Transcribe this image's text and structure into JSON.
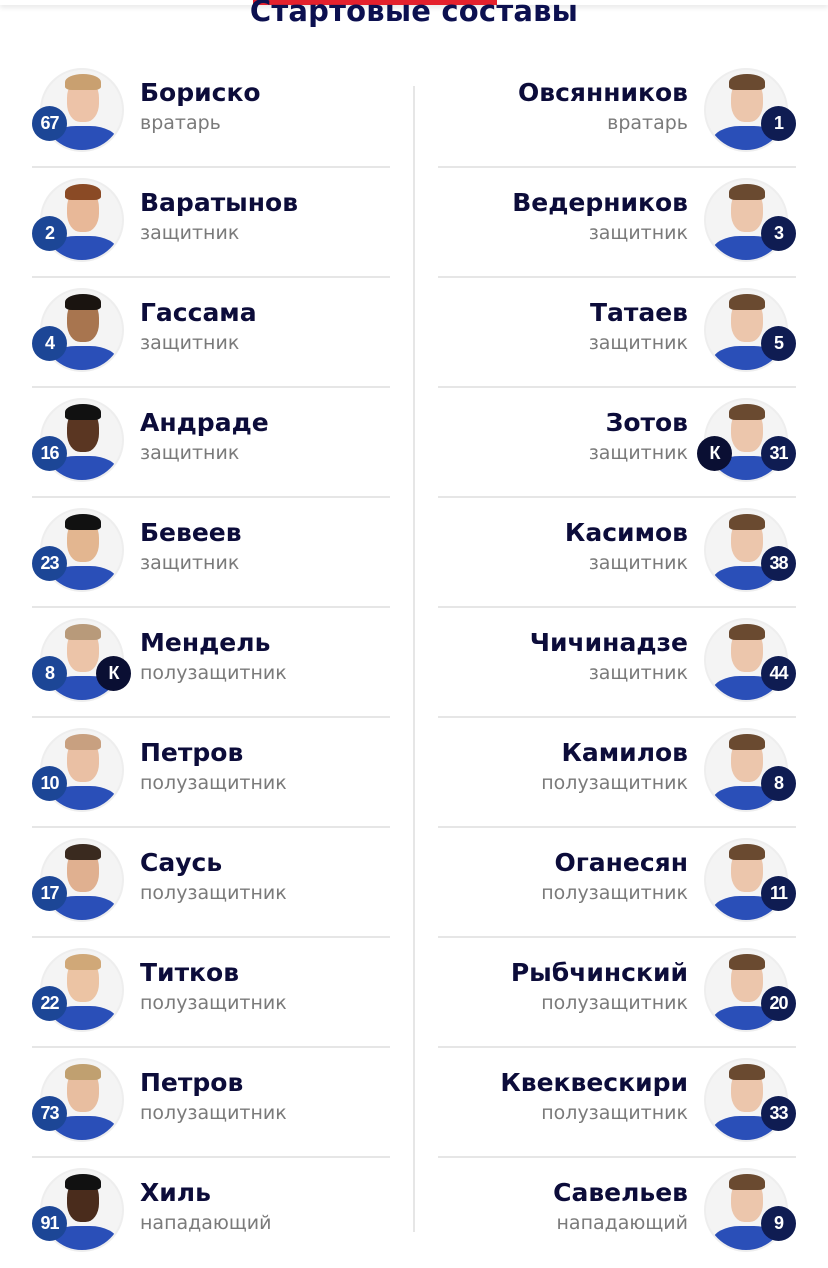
{
  "header": {
    "title": "Стартовые составы",
    "accent_color": "#e4212d"
  },
  "home": [
    {
      "name": "Бориско",
      "position": "вратарь",
      "number": "67",
      "captain": false
    },
    {
      "name": "Варатынов",
      "position": "защитник",
      "number": "2",
      "captain": false
    },
    {
      "name": "Гассама",
      "position": "защитник",
      "number": "4",
      "captain": false
    },
    {
      "name": "Андраде",
      "position": "защитник",
      "number": "16",
      "captain": false
    },
    {
      "name": "Бевеев",
      "position": "защитник",
      "number": "23",
      "captain": false
    },
    {
      "name": "Мендель",
      "position": "полузащитник",
      "number": "8",
      "captain": true
    },
    {
      "name": "Петров",
      "position": "полузащитник",
      "number": "10",
      "captain": false
    },
    {
      "name": "Саусь",
      "position": "полузащитник",
      "number": "17",
      "captain": false
    },
    {
      "name": "Титков",
      "position": "полузащитник",
      "number": "22",
      "captain": false
    },
    {
      "name": "Петров",
      "position": "полузащитник",
      "number": "73",
      "captain": false
    },
    {
      "name": "Хиль",
      "position": "нападающий",
      "number": "91",
      "captain": false
    }
  ],
  "away": [
    {
      "name": "Овсянников",
      "position": "вратарь",
      "number": "1",
      "captain": false
    },
    {
      "name": "Ведерников",
      "position": "защитник",
      "number": "3",
      "captain": false
    },
    {
      "name": "Татаев",
      "position": "защитник",
      "number": "5",
      "captain": false
    },
    {
      "name": "Зотов",
      "position": "защитник",
      "number": "31",
      "captain": true
    },
    {
      "name": "Касимов",
      "position": "защитник",
      "number": "38",
      "captain": false
    },
    {
      "name": "Чичинадзе",
      "position": "защитник",
      "number": "44",
      "captain": false
    },
    {
      "name": "Камилов",
      "position": "полузащитник",
      "number": "8",
      "captain": false
    },
    {
      "name": "Оганесян",
      "position": "полузащитник",
      "number": "11",
      "captain": false
    },
    {
      "name": "Рыбчинский",
      "position": "полузащитник",
      "number": "20",
      "captain": false
    },
    {
      "name": "Квеквескири",
      "position": "полузащитник",
      "number": "33",
      "captain": false
    },
    {
      "name": "Савельев",
      "position": "нападающий",
      "number": "9",
      "captain": false
    }
  ],
  "captain_label": "К"
}
